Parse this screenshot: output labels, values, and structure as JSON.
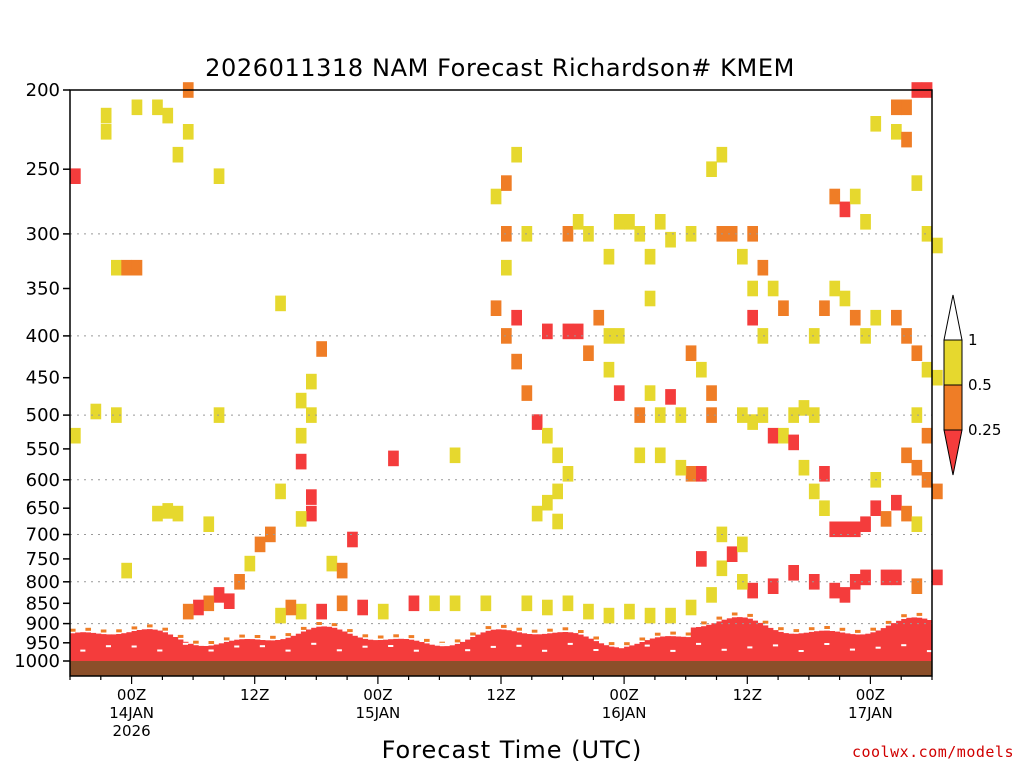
{
  "chart_data": {
    "type": "heatmap",
    "title": "2026011318 NAM Forecast Richardson# KMEM",
    "xlabel": "Forecast Time (UTC)",
    "ylabel": "",
    "y_axis": {
      "scale": "pressure",
      "inverted": true,
      "range": [
        1000,
        200
      ],
      "ticks": [
        200,
        250,
        300,
        350,
        400,
        450,
        500,
        550,
        600,
        650,
        700,
        750,
        800,
        850,
        900,
        950,
        1000
      ]
    },
    "x_axis": {
      "range_hours": [
        0,
        84
      ],
      "ticks": [
        {
          "hour": 6,
          "lines": [
            "00Z",
            "14JAN",
            "2026"
          ]
        },
        {
          "hour": 18,
          "lines": [
            "12Z"
          ]
        },
        {
          "hour": 30,
          "lines": [
            "00Z",
            "15JAN"
          ]
        },
        {
          "hour": 42,
          "lines": [
            "12Z"
          ]
        },
        {
          "hour": 54,
          "lines": [
            "00Z",
            "16JAN"
          ]
        },
        {
          "hour": 66,
          "lines": [
            "12Z"
          ]
        },
        {
          "hour": 78,
          "lines": [
            "00Z",
            "17JAN"
          ]
        }
      ]
    },
    "grid": {
      "horizontal_dotted": [
        300,
        400,
        500,
        600,
        700,
        800,
        900
      ]
    },
    "colorbar": {
      "orientation": "vertical",
      "placement": "right",
      "ticks": [
        "1",
        "0.5",
        "0.25"
      ],
      "bins": [
        {
          "range": "> 1",
          "color": "#ffffff"
        },
        {
          "range": "0.5 - 1",
          "color": "#e6d82e"
        },
        {
          "range": "0.25 - 0.5",
          "color": "#ef7d26"
        },
        {
          "range": "< 0.25",
          "color": "#f43c3c"
        }
      ]
    },
    "colors": {
      "low": "#f43c3c",
      "mid": "#ef7d26",
      "high": "#e6d82e",
      "ground": "#8b4f2a"
    },
    "cells": [
      [
        3,
        225,
        "y"
      ],
      [
        3,
        215,
        "y"
      ],
      [
        6,
        210,
        "y"
      ],
      [
        8,
        210,
        "y"
      ],
      [
        9,
        215,
        "y"
      ],
      [
        11,
        200,
        "o"
      ],
      [
        11,
        225,
        "y"
      ],
      [
        10,
        240,
        "y"
      ],
      [
        14,
        255,
        "y"
      ],
      [
        0,
        255,
        "r"
      ],
      [
        4,
        330,
        "y"
      ],
      [
        5,
        330,
        "o"
      ],
      [
        6,
        330,
        "o"
      ],
      [
        20,
        365,
        "y"
      ],
      [
        24,
        415,
        "o"
      ],
      [
        23,
        455,
        "y"
      ],
      [
        22,
        480,
        "y"
      ],
      [
        2,
        495,
        "y"
      ],
      [
        4,
        500,
        "y"
      ],
      [
        14,
        500,
        "y"
      ],
      [
        23,
        500,
        "y"
      ],
      [
        22,
        530,
        "y"
      ],
      [
        0,
        530,
        "y"
      ],
      [
        22,
        570,
        "r"
      ],
      [
        20,
        620,
        "y"
      ],
      [
        23,
        630,
        "r"
      ],
      [
        23,
        660,
        "r"
      ],
      [
        22,
        670,
        "y"
      ],
      [
        19,
        700,
        "o"
      ],
      [
        18,
        720,
        "o"
      ],
      [
        8,
        660,
        "y"
      ],
      [
        9,
        655,
        "y"
      ],
      [
        10,
        660,
        "y"
      ],
      [
        13,
        680,
        "y"
      ],
      [
        5,
        775,
        "y"
      ],
      [
        17,
        760,
        "y"
      ],
      [
        16,
        800,
        "o"
      ],
      [
        14,
        830,
        "r"
      ],
      [
        13,
        850,
        "o"
      ],
      [
        12,
        860,
        "r"
      ],
      [
        15,
        845,
        "r"
      ],
      [
        11,
        870,
        "o"
      ],
      [
        25,
        760,
        "y"
      ],
      [
        26,
        775,
        "o"
      ],
      [
        27,
        710,
        "r"
      ],
      [
        31,
        565,
        "r"
      ],
      [
        37,
        560,
        "y"
      ],
      [
        41,
        270,
        "y"
      ],
      [
        42,
        260,
        "o"
      ],
      [
        42,
        300,
        "o"
      ],
      [
        43,
        240,
        "y"
      ],
      [
        44,
        300,
        "y"
      ],
      [
        42,
        330,
        "y"
      ],
      [
        41,
        370,
        "o"
      ],
      [
        42,
        400,
        "o"
      ],
      [
        43,
        380,
        "r"
      ],
      [
        43,
        430,
        "o"
      ],
      [
        44,
        470,
        "o"
      ],
      [
        45,
        510,
        "r"
      ],
      [
        46,
        530,
        "y"
      ],
      [
        47,
        560,
        "y"
      ],
      [
        48,
        590,
        "y"
      ],
      [
        47,
        620,
        "y"
      ],
      [
        46,
        640,
        "y"
      ],
      [
        45,
        660,
        "y"
      ],
      [
        47,
        675,
        "y"
      ],
      [
        46,
        395,
        "r"
      ],
      [
        48,
        395,
        "r"
      ],
      [
        49,
        395,
        "r"
      ],
      [
        50,
        420,
        "o"
      ],
      [
        51,
        380,
        "o"
      ],
      [
        52,
        400,
        "y"
      ],
      [
        48,
        300,
        "o"
      ],
      [
        49,
        290,
        "y"
      ],
      [
        50,
        300,
        "y"
      ],
      [
        52,
        320,
        "y"
      ],
      [
        53,
        290,
        "y"
      ],
      [
        54,
        290,
        "y"
      ],
      [
        55,
        300,
        "y"
      ],
      [
        56,
        320,
        "y"
      ],
      [
        57,
        290,
        "y"
      ],
      [
        58,
        305,
        "y"
      ],
      [
        53,
        400,
        "y"
      ],
      [
        52,
        440,
        "y"
      ],
      [
        53,
        470,
        "r"
      ],
      [
        55,
        500,
        "o"
      ],
      [
        56,
        470,
        "y"
      ],
      [
        57,
        500,
        "y"
      ],
      [
        58,
        475,
        "r"
      ],
      [
        59,
        500,
        "y"
      ],
      [
        60,
        590,
        "o"
      ],
      [
        61,
        590,
        "r"
      ],
      [
        60,
        420,
        "o"
      ],
      [
        61,
        440,
        "y"
      ],
      [
        62,
        470,
        "o"
      ],
      [
        55,
        560,
        "y"
      ],
      [
        57,
        560,
        "y"
      ],
      [
        59,
        580,
        "y"
      ],
      [
        62,
        500,
        "o"
      ],
      [
        56,
        360,
        "y"
      ],
      [
        60,
        300,
        "y"
      ],
      [
        62,
        250,
        "y"
      ],
      [
        63,
        240,
        "y"
      ],
      [
        63,
        300,
        "o"
      ],
      [
        64,
        300,
        "o"
      ],
      [
        65,
        320,
        "y"
      ],
      [
        66,
        300,
        "o"
      ],
      [
        66,
        350,
        "y"
      ],
      [
        67,
        330,
        "o"
      ],
      [
        66,
        380,
        "r"
      ],
      [
        67,
        400,
        "y"
      ],
      [
        68,
        350,
        "y"
      ],
      [
        69,
        370,
        "o"
      ],
      [
        65,
        500,
        "y"
      ],
      [
        66,
        510,
        "y"
      ],
      [
        67,
        500,
        "y"
      ],
      [
        68,
        530,
        "r"
      ],
      [
        69,
        530,
        "y"
      ],
      [
        70,
        500,
        "y"
      ],
      [
        71,
        490,
        "y"
      ],
      [
        72,
        500,
        "y"
      ],
      [
        70,
        540,
        "r"
      ],
      [
        71,
        580,
        "y"
      ],
      [
        72,
        620,
        "y"
      ],
      [
        73,
        650,
        "y"
      ],
      [
        73,
        590,
        "r"
      ],
      [
        72,
        400,
        "y"
      ],
      [
        73,
        370,
        "o"
      ],
      [
        74,
        350,
        "y"
      ],
      [
        75,
        360,
        "y"
      ],
      [
        76,
        380,
        "o"
      ],
      [
        77,
        400,
        "y"
      ],
      [
        78,
        380,
        "y"
      ],
      [
        74,
        270,
        "o"
      ],
      [
        75,
        280,
        "r"
      ],
      [
        76,
        270,
        "y"
      ],
      [
        77,
        290,
        "y"
      ],
      [
        78,
        220,
        "y"
      ],
      [
        80,
        210,
        "o"
      ],
      [
        81,
        210,
        "o"
      ],
      [
        82,
        200,
        "r"
      ],
      [
        83,
        200,
        "r"
      ],
      [
        80,
        225,
        "y"
      ],
      [
        81,
        230,
        "o"
      ],
      [
        82,
        260,
        "y"
      ],
      [
        83,
        300,
        "y"
      ],
      [
        84,
        310,
        "y"
      ],
      [
        80,
        380,
        "o"
      ],
      [
        81,
        400,
        "o"
      ],
      [
        82,
        420,
        "o"
      ],
      [
        83,
        440,
        "y"
      ],
      [
        84,
        450,
        "y"
      ],
      [
        82,
        500,
        "y"
      ],
      [
        83,
        530,
        "o"
      ],
      [
        81,
        560,
        "o"
      ],
      [
        82,
        580,
        "o"
      ],
      [
        83,
        600,
        "o"
      ],
      [
        84,
        620,
        "o"
      ],
      [
        80,
        640,
        "r"
      ],
      [
        81,
        660,
        "o"
      ],
      [
        82,
        680,
        "y"
      ],
      [
        78,
        650,
        "r"
      ],
      [
        77,
        680,
        "r"
      ],
      [
        76,
        690,
        "r"
      ],
      [
        75,
        690,
        "r"
      ],
      [
        74,
        690,
        "r"
      ],
      [
        79,
        670,
        "o"
      ],
      [
        78,
        600,
        "y"
      ],
      [
        70,
        780,
        "r"
      ],
      [
        72,
        800,
        "r"
      ],
      [
        74,
        820,
        "r"
      ],
      [
        75,
        830,
        "r"
      ],
      [
        76,
        800,
        "r"
      ],
      [
        77,
        790,
        "r"
      ],
      [
        68,
        810,
        "r"
      ],
      [
        66,
        820,
        "r"
      ],
      [
        65,
        800,
        "y"
      ],
      [
        63,
        770,
        "y"
      ],
      [
        62,
        830,
        "y"
      ],
      [
        60,
        860,
        "y"
      ],
      [
        58,
        880,
        "y"
      ],
      [
        56,
        880,
        "y"
      ],
      [
        54,
        870,
        "y"
      ],
      [
        52,
        880,
        "y"
      ],
      [
        50,
        870,
        "y"
      ],
      [
        48,
        850,
        "y"
      ],
      [
        46,
        860,
        "y"
      ],
      [
        44,
        850,
        "y"
      ],
      [
        40,
        850,
        "y"
      ],
      [
        37,
        850,
        "y"
      ],
      [
        35,
        850,
        "y"
      ],
      [
        33,
        850,
        "r"
      ],
      [
        30,
        870,
        "y"
      ],
      [
        28,
        860,
        "r"
      ],
      [
        26,
        850,
        "o"
      ],
      [
        24,
        870,
        "r"
      ],
      [
        22,
        870,
        "y"
      ],
      [
        21,
        860,
        "o"
      ],
      [
        20,
        880,
        "y"
      ],
      [
        80,
        790,
        "r"
      ],
      [
        82,
        810,
        "o"
      ],
      [
        84,
        790,
        "r"
      ],
      [
        79,
        790,
        "r"
      ],
      [
        64,
        740,
        "r"
      ],
      [
        61,
        750,
        "r"
      ],
      [
        63,
        700,
        "y"
      ],
      [
        65,
        720,
        "y"
      ]
    ]
  },
  "footer": {
    "credit": "coolwx.com/models"
  }
}
